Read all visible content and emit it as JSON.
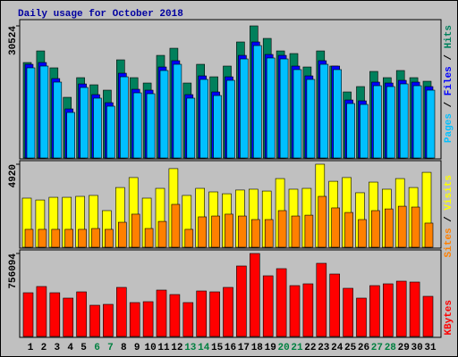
{
  "chart_data": {
    "type": "bar",
    "title": "Daily usage for October 2018",
    "separator": " / ",
    "categories": [
      "1",
      "2",
      "3",
      "4",
      "5",
      "6",
      "7",
      "8",
      "9",
      "10",
      "11",
      "12",
      "13",
      "14",
      "15",
      "16",
      "17",
      "18",
      "19",
      "20",
      "21",
      "22",
      "23",
      "24",
      "25",
      "26",
      "27",
      "28",
      "29",
      "30",
      "31"
    ],
    "category_colors": [
      "#000000",
      "#000000",
      "#000000",
      "#000000",
      "#000000",
      "#008040",
      "#008040",
      "#000000",
      "#000000",
      "#000000",
      "#000000",
      "#000000",
      "#008040",
      "#008040",
      "#000000",
      "#000000",
      "#000000",
      "#000000",
      "#000000",
      "#008040",
      "#008040",
      "#000000",
      "#000000",
      "#000000",
      "#000000",
      "#000000",
      "#008040",
      "#008040",
      "#000000",
      "#000000",
      "#000000"
    ],
    "panels": [
      {
        "ylim": [
          0,
          30524
        ],
        "yticks": [
          30524
        ],
        "series": [
          {
            "name": "Hits",
            "color": "#00805c",
            "values": [
              22060,
              24740,
              20830,
              14020,
              18560,
              16910,
              15670,
              22680,
              18560,
              17320,
              23710,
              25360,
              17320,
              21650,
              18760,
              21240,
              26810,
              30524,
              27630,
              24740,
              24130,
              21030,
              24740,
              21240,
              15260,
              16500,
              20000,
              18560,
              20210,
              18560,
              17730
            ]
          },
          {
            "name": "Files",
            "color": "#0000ff",
            "values": [
              21650,
              22060,
              18350,
              11340,
              17110,
              14640,
              12780,
              19590,
              15880,
              15670,
              21030,
              22480,
              14640,
              18970,
              15260,
              18760,
              23710,
              26810,
              23920,
              23710,
              21240,
              18970,
              22480,
              21240,
              13400,
              13200,
              17530,
              17320,
              17940,
              17530,
              16500
            ]
          },
          {
            "name": "Pages",
            "color": "#00c0ff",
            "values": [
              20830,
              21240,
              17530,
              10520,
              16290,
              13820,
              11960,
              18760,
              15050,
              14850,
              20210,
              21650,
              13820,
              18150,
              14430,
              17940,
              22890,
              25980,
              23100,
              22890,
              20420,
              18150,
              21650,
              20420,
              12580,
              12370,
              16700,
              16500,
              17120,
              16700,
              15670
            ]
          }
        ]
      },
      {
        "ylim": [
          0,
          4920
        ],
        "yticks": [
          4920
        ],
        "series": [
          {
            "name": "Visits",
            "color": "#ffff00",
            "values": [
              2910,
              2800,
              2960,
              2960,
              3015,
              3070,
              2170,
              3540,
              4130,
              2910,
              3490,
              4660,
              3070,
              3490,
              3280,
              3170,
              3390,
              3440,
              3330,
              4070,
              3440,
              3490,
              4920,
              3910,
              4130,
              3230,
              3860,
              3440,
              4070,
              3540,
              4440
            ]
          },
          {
            "name": "Sites",
            "color": "#ff8000",
            "values": [
              1060,
              1060,
              1060,
              1060,
              1060,
              1110,
              1060,
              1480,
              1960,
              1110,
              1530,
              2540,
              1060,
              1800,
              1850,
              1960,
              1850,
              1640,
              1640,
              2170,
              1850,
              1900,
              3015,
              2330,
              2060,
              1640,
              2170,
              2270,
              2430,
              2380,
              1430
            ]
          }
        ]
      },
      {
        "ylim": [
          0,
          756094
        ],
        "yticks": [
          756094
        ],
        "series": [
          {
            "name": "KBytes",
            "color": "#ff0000",
            "values": [
              398370,
              455280,
              398370,
              349590,
              406500,
              284550,
              292680,
              447150,
              308940,
              317070,
              422760,
              382110,
              308940,
              414630,
              406500,
              447150,
              642270,
              756094,
              552840,
              617880,
              463410,
              479670,
              666660,
              569100,
              439020,
              349590,
              463410,
              479670,
              504060,
              495930,
              365850
            ]
          }
        ]
      }
    ]
  }
}
